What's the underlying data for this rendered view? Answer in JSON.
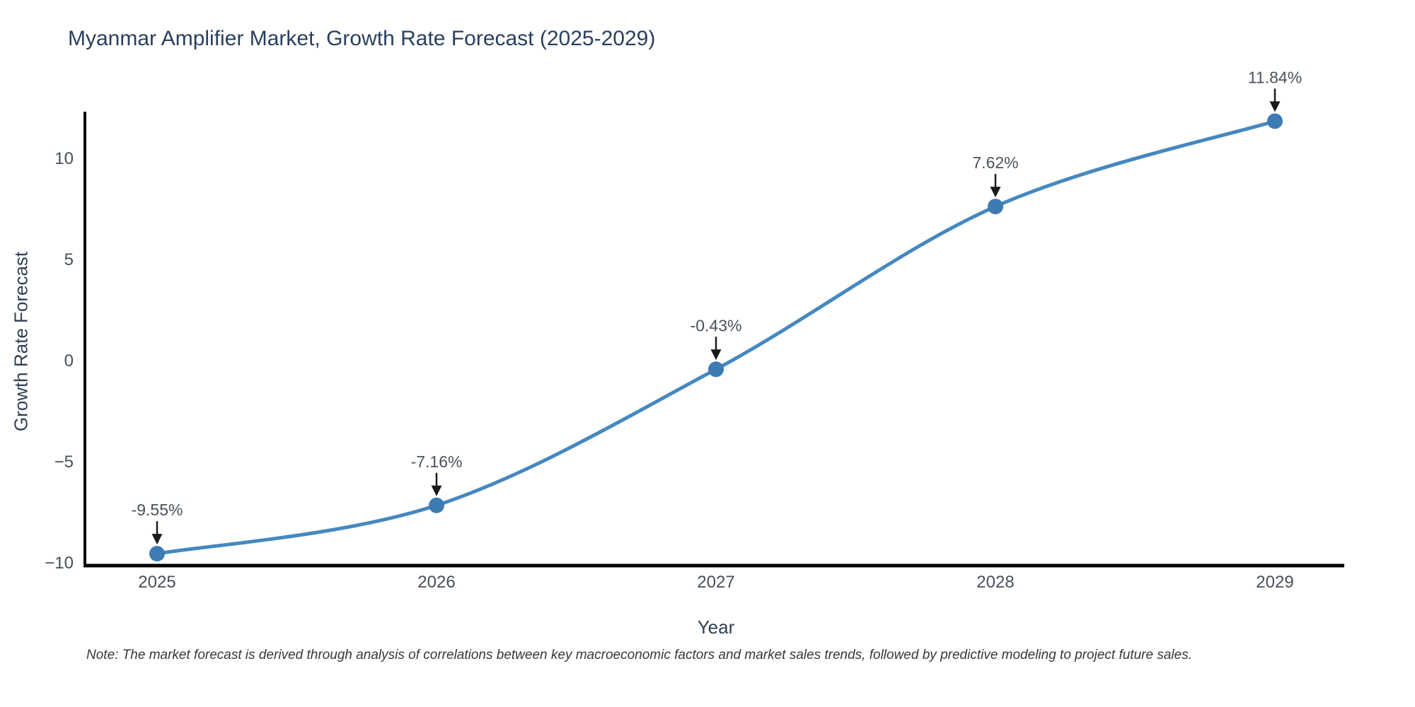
{
  "chart_data": {
    "type": "line",
    "title": "Myanmar Amplifier Market, Growth Rate Forecast (2025-2029)",
    "x": [
      2025,
      2026,
      2027,
      2028,
      2029
    ],
    "series": [
      {
        "name": "Growth Rate Forecast",
        "values": [
          -9.55,
          -7.16,
          -0.43,
          7.62,
          11.84
        ]
      }
    ],
    "point_labels": [
      "-9.55%",
      "-7.16%",
      "-0.43%",
      "7.62%",
      "11.84%"
    ],
    "xlabel": "Year",
    "ylabel": "Growth Rate Forecast",
    "xtick_labels": [
      "2025",
      "2026",
      "2027",
      "2028",
      "2029"
    ],
    "yticks": [
      -10,
      -5,
      0,
      5,
      10
    ],
    "ytick_labels": [
      "−10",
      "−5",
      "0",
      "5",
      "10"
    ],
    "xlim": [
      2024.74,
      2029.26
    ],
    "ylim": [
      -10.15,
      12.3
    ],
    "line_shape": "spline",
    "marker": "circle",
    "annotation_arrows": true,
    "grid": false,
    "legend": "none",
    "colors": {
      "line": "#4588c0",
      "marker": "#3d7bb3",
      "axis_spine": "#000000",
      "arrow": "#1a1a1a",
      "title_text": "#2a3f5f",
      "axis_label_text": "#2e3f54",
      "tick_text": "#474f58",
      "annotation_text": "#4a525c",
      "note_text": "#383838"
    }
  },
  "footer": {
    "note": "Note: The market forecast is derived through analysis of correlations between key macroeconomic factors and market sales trends, followed by predictive modeling to project future sales."
  }
}
